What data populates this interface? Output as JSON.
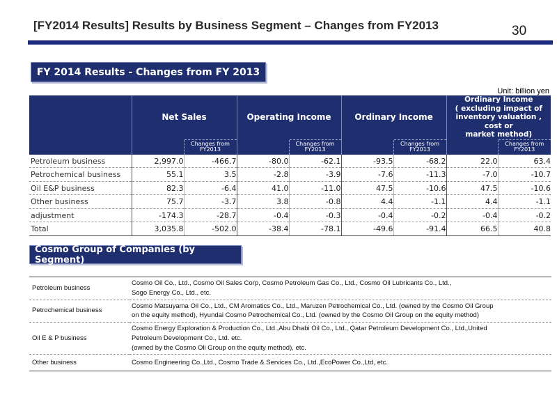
{
  "header": {
    "title": "[FY2014 Results] Results by Business Segment – Changes from FY2013",
    "page_number": "30"
  },
  "results_section": {
    "label": "FY 2014 Results - Changes from FY 2013",
    "unit": "Unit: billion yen",
    "columns": {
      "net_sales": "Net Sales",
      "operating_income": "Operating Income",
      "ordinary_income": "Ordinary Income",
      "ordinary_income_ex": [
        "Ordinary Income",
        "( excluding impact of",
        "inventory valuation , cost or",
        "market method)"
      ],
      "changes_line1": "Changes from",
      "changes_line2": "FY2013"
    },
    "rows": [
      {
        "segment": "Petroleum business",
        "values": [
          "2,997.0",
          "-466.7",
          "-80.0",
          "-62.1",
          "-93.5",
          "-68.2",
          "22.0",
          "63.4"
        ]
      },
      {
        "segment": "Petrochemical business",
        "values": [
          "55.1",
          "3.5",
          "-2.8",
          "-3.9",
          "-7.6",
          "-11.3",
          "-7.0",
          "-10.7"
        ]
      },
      {
        "segment": "Oil E&P business",
        "values": [
          "82.3",
          "-6.4",
          "41.0",
          "-11.0",
          "47.5",
          "-10.6",
          "47.5",
          "-10.6"
        ]
      },
      {
        "segment": "Other business",
        "values": [
          "75.7",
          "-3.7",
          "3.8",
          "-0.8",
          "4.4",
          "-1.1",
          "4.4",
          "-1.1"
        ]
      },
      {
        "segment": "adjustment",
        "values": [
          "-174.3",
          "-28.7",
          "-0.4",
          "-0.3",
          "-0.4",
          "-0.2",
          "-0.4",
          "-0.2"
        ]
      },
      {
        "segment": "Total",
        "values": [
          "3,035.8",
          "-502.0",
          "-38.4",
          "-78.1",
          "-49.6",
          "-91.4",
          "66.5",
          "40.8"
        ]
      }
    ]
  },
  "companies_section": {
    "label": "Cosmo Group of Companies (by Segment)",
    "rows": [
      {
        "segment": "Petroleum business",
        "lines": [
          "Cosmo Oil Co., Ltd., Cosmo Oil Sales Corp, Cosmo Petroleum Gas Co., Ltd., Cosmo Oil Lubricants Co., Ltd.,",
          "Sogo Energy Co., Ltd., etc."
        ]
      },
      {
        "segment": "Petrochemical business",
        "lines": [
          "Cosmo Matsuyama Oil Co., Ltd., CM Aromatics Co., Ltd., Maruzen Petrochemical Co., Ltd. (owned by the Cosmo Oil Group",
          "on the equity method), Hyundai Cosmo Petrochemical Co., Ltd. (owned by the Cosmo Oil Group on the equity method)"
        ]
      },
      {
        "segment": "Oil E & P business",
        "lines": [
          "Cosmo Energy Exploration & Production Co., Ltd.,Abu Dhabi Oil Co., Ltd., Qatar Petroleum Development Co., Ltd.,United",
          "Petroleum Development Co., Ltd. etc.",
          "(owned by the Cosmo Oli Group on the equity method), etc."
        ]
      },
      {
        "segment": "Other business",
        "lines": [
          "Cosmo Engineering Co.,Ltd., Cosmo Trade & Services Co., Ltd.,EcoPower Co.,Ltd, etc."
        ]
      }
    ]
  }
}
